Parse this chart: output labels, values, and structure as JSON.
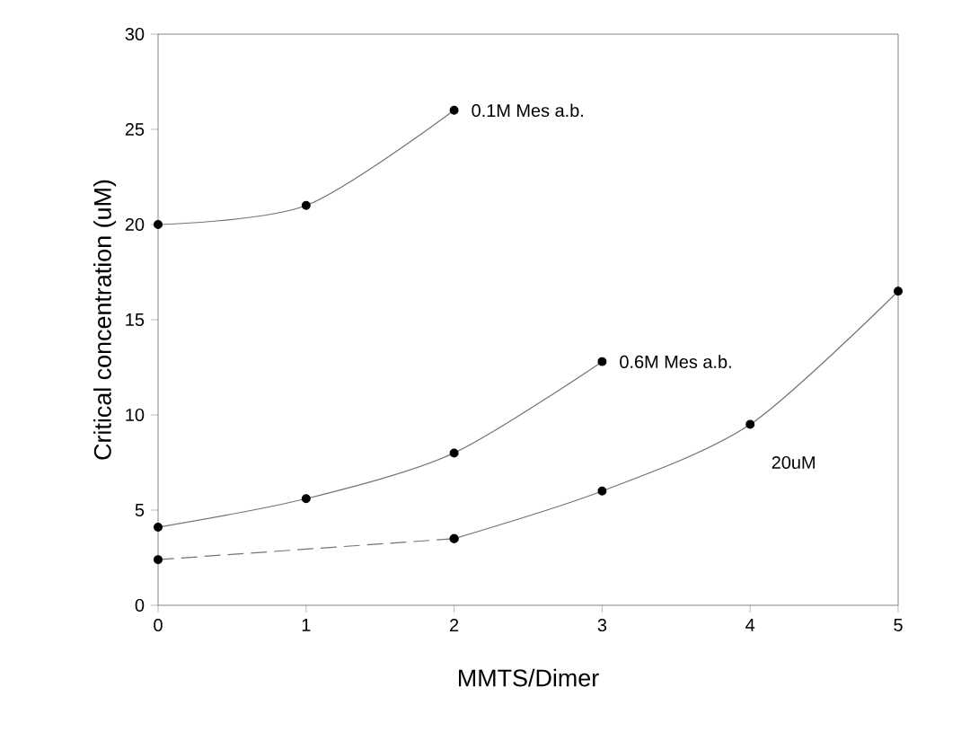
{
  "chart_data": {
    "type": "line",
    "xlabel": "MMTS/Dimer",
    "ylabel": "Critical concentration (uM)",
    "xlim": [
      0,
      5
    ],
    "ylim": [
      0,
      30
    ],
    "xticks": [
      0,
      1,
      2,
      3,
      4,
      5
    ],
    "yticks": [
      0,
      5,
      10,
      15,
      20,
      25,
      30
    ],
    "marker": "circle",
    "series": [
      {
        "color": "#000000",
        "x": [
          0,
          1,
          2
        ],
        "values": [
          20,
          21,
          26
        ],
        "line_style": "solid"
      },
      {
        "color": "#000000",
        "x": [
          0,
          1,
          2,
          3
        ],
        "values": [
          4.1,
          5.6,
          8,
          12.8
        ],
        "line_style": "solid"
      },
      {
        "color": "#000000",
        "x": [
          0,
          2
        ],
        "values": [
          2.4,
          3.5
        ],
        "line_style": "dashed"
      },
      {
        "color": "#000000",
        "x": [
          2,
          3,
          4,
          5
        ],
        "values": [
          3.5,
          6,
          9.5,
          16.5
        ],
        "line_style": "solid"
      }
    ],
    "annotations": [
      {
        "text": "0.1M Mes a.b.",
        "x": 2,
        "y": 26
      },
      {
        "text": "0.6M Mes a.b.",
        "x": 3,
        "y": 12.8
      },
      "20uM"
    ]
  }
}
